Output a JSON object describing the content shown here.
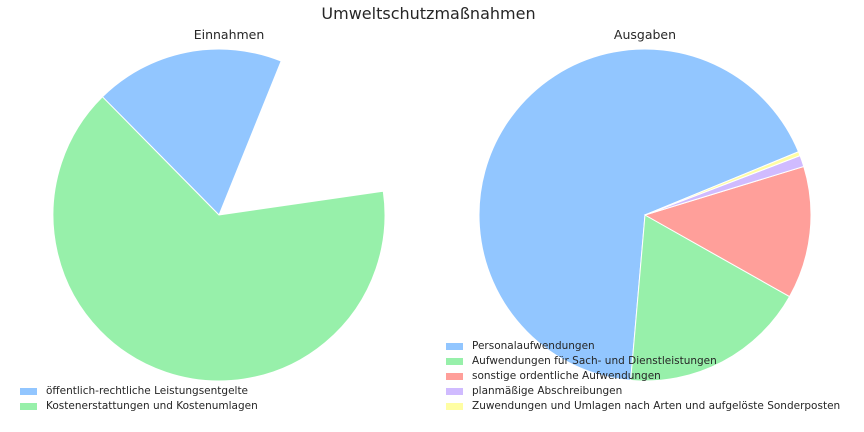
{
  "title": "Umweltschutzmaßnahmen",
  "chart_data": [
    {
      "type": "pie",
      "title": "Einnahmen",
      "legend_position": "bottom-left",
      "slices": [
        {
          "label": "öffentlich-rechtliche Leistungsentgelte",
          "value": 18.5,
          "color": "#92c6ff"
        },
        {
          "label": "Kostenerstattungen und Kostenumlagen",
          "value": 64.9,
          "color": "#97f0aa"
        }
      ]
    },
    {
      "type": "pie",
      "title": "Ausgaben",
      "legend_position": "bottom-center",
      "slices": [
        {
          "label": "Personalaufwendungen",
          "value": 67.4,
          "color": "#92c6ff"
        },
        {
          "label": "Aufwendungen für Sach- und Dienstleistungen",
          "value": 18.2,
          "color": "#97f0aa"
        },
        {
          "label": "sonstige ordentliche Aufwendungen",
          "value": 12.9,
          "color": "#ff9f9a"
        },
        {
          "label": "planmäßige Abschreibungen",
          "value": 1.1,
          "color": "#d0bbff"
        },
        {
          "label": "Zuwendungen und Umlagen nach Arten und aufgelöste Sonderposten",
          "value": 0.4,
          "color": "#fffea3"
        }
      ]
    }
  ]
}
